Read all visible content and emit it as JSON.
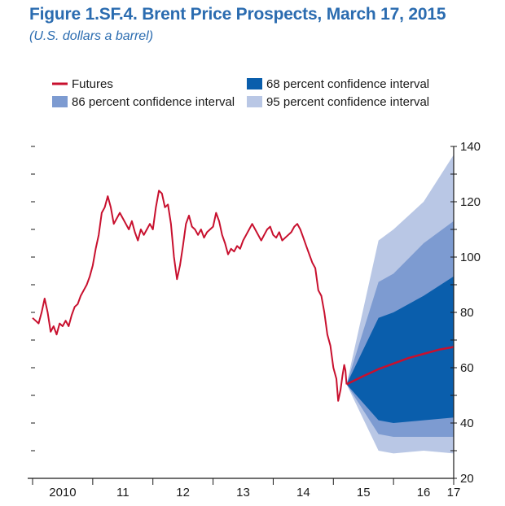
{
  "figure": {
    "title": "Figure 1.SF.4.  Brent Price Prospects, March 17, 2015",
    "subtitle": "(U.S. dollars a barrel)"
  },
  "legend": {
    "futures": "Futures",
    "ci68": "68 percent confidence interval",
    "ci86": "86 percent confidence interval",
    "ci95": "95 percent confidence interval"
  },
  "colors": {
    "title": "#2b6cb0",
    "futures": "#c8102e",
    "ci68": "#0a5eac",
    "ci86": "#7d9bd1",
    "ci95": "#b9c7e5",
    "axis": "#1a1a1a"
  },
  "chart_data": {
    "type": "line",
    "title": "Figure 1.SF.4.  Brent Price Prospects, March 17, 2015",
    "ylabel": "U.S. dollars a barrel",
    "xlim": [
      2010,
      2017
    ],
    "ylim": [
      20,
      140
    ],
    "yticks": [
      20,
      40,
      60,
      80,
      100,
      120,
      140
    ],
    "xtick_labels": [
      "2010",
      "11",
      "12",
      "13",
      "14",
      "15",
      "16",
      "17"
    ],
    "grid": false,
    "legend_position": "top",
    "series": [
      {
        "name": "Futures",
        "kind": "line",
        "color": "#c8102e",
        "points": [
          [
            2010.0,
            78
          ],
          [
            2010.05,
            77
          ],
          [
            2010.1,
            76
          ],
          [
            2010.15,
            80
          ],
          [
            2010.2,
            85
          ],
          [
            2010.25,
            80
          ],
          [
            2010.3,
            73
          ],
          [
            2010.35,
            75
          ],
          [
            2010.4,
            72
          ],
          [
            2010.45,
            76
          ],
          [
            2010.5,
            75
          ],
          [
            2010.55,
            77
          ],
          [
            2010.6,
            75
          ],
          [
            2010.65,
            79
          ],
          [
            2010.7,
            82
          ],
          [
            2010.75,
            83
          ],
          [
            2010.8,
            86
          ],
          [
            2010.85,
            88
          ],
          [
            2010.9,
            90
          ],
          [
            2010.95,
            93
          ],
          [
            2011.0,
            97
          ],
          [
            2011.05,
            103
          ],
          [
            2011.1,
            108
          ],
          [
            2011.15,
            116
          ],
          [
            2011.2,
            118
          ],
          [
            2011.25,
            122
          ],
          [
            2011.3,
            118
          ],
          [
            2011.35,
            112
          ],
          [
            2011.4,
            114
          ],
          [
            2011.45,
            116
          ],
          [
            2011.5,
            114
          ],
          [
            2011.55,
            112
          ],
          [
            2011.6,
            110
          ],
          [
            2011.65,
            113
          ],
          [
            2011.7,
            109
          ],
          [
            2011.75,
            106
          ],
          [
            2011.8,
            110
          ],
          [
            2011.85,
            108
          ],
          [
            2011.9,
            110
          ],
          [
            2011.95,
            112
          ],
          [
            2012.0,
            110
          ],
          [
            2012.05,
            118
          ],
          [
            2012.1,
            124
          ],
          [
            2012.15,
            123
          ],
          [
            2012.2,
            118
          ],
          [
            2012.25,
            119
          ],
          [
            2012.3,
            112
          ],
          [
            2012.35,
            100
          ],
          [
            2012.4,
            92
          ],
          [
            2012.45,
            97
          ],
          [
            2012.5,
            104
          ],
          [
            2012.55,
            112
          ],
          [
            2012.6,
            115
          ],
          [
            2012.65,
            111
          ],
          [
            2012.7,
            110
          ],
          [
            2012.75,
            108
          ],
          [
            2012.8,
            110
          ],
          [
            2012.85,
            107
          ],
          [
            2012.9,
            109
          ],
          [
            2012.95,
            110
          ],
          [
            2013.0,
            111
          ],
          [
            2013.05,
            116
          ],
          [
            2013.1,
            113
          ],
          [
            2013.15,
            108
          ],
          [
            2013.2,
            105
          ],
          [
            2013.25,
            101
          ],
          [
            2013.3,
            103
          ],
          [
            2013.35,
            102
          ],
          [
            2013.4,
            104
          ],
          [
            2013.45,
            103
          ],
          [
            2013.5,
            106
          ],
          [
            2013.55,
            108
          ],
          [
            2013.6,
            110
          ],
          [
            2013.65,
            112
          ],
          [
            2013.7,
            110
          ],
          [
            2013.75,
            108
          ],
          [
            2013.8,
            106
          ],
          [
            2013.85,
            108
          ],
          [
            2013.9,
            110
          ],
          [
            2013.95,
            111
          ],
          [
            2014.0,
            108
          ],
          [
            2014.05,
            107
          ],
          [
            2014.1,
            109
          ],
          [
            2014.15,
            106
          ],
          [
            2014.2,
            107
          ],
          [
            2014.25,
            108
          ],
          [
            2014.3,
            109
          ],
          [
            2014.35,
            111
          ],
          [
            2014.4,
            112
          ],
          [
            2014.45,
            110
          ],
          [
            2014.5,
            107
          ],
          [
            2014.55,
            104
          ],
          [
            2014.6,
            101
          ],
          [
            2014.65,
            98
          ],
          [
            2014.7,
            96
          ],
          [
            2014.75,
            88
          ],
          [
            2014.8,
            86
          ],
          [
            2014.85,
            80
          ],
          [
            2014.9,
            72
          ],
          [
            2014.95,
            68
          ],
          [
            2015.0,
            60
          ],
          [
            2015.05,
            56
          ],
          [
            2015.08,
            48
          ],
          [
            2015.12,
            52
          ],
          [
            2015.15,
            57
          ],
          [
            2015.18,
            61
          ],
          [
            2015.2,
            59
          ],
          [
            2015.22,
            54
          ]
        ]
      },
      {
        "name": "Futures",
        "kind": "projection",
        "color": "#c8102e",
        "points": [
          [
            2015.22,
            54
          ],
          [
            2015.5,
            57
          ],
          [
            2015.75,
            59.5
          ],
          [
            2016.0,
            61.5
          ],
          [
            2016.25,
            63.5
          ],
          [
            2016.5,
            65
          ],
          [
            2016.75,
            66.5
          ],
          [
            2017.0,
            67.5
          ]
        ]
      }
    ],
    "bands": [
      {
        "name": "95 percent confidence interval",
        "color": "#b9c7e5",
        "x": [
          2015.22,
          2015.75,
          2016.0,
          2016.5,
          2017.0
        ],
        "upper": [
          54,
          106,
          110,
          120,
          137
        ],
        "lower": [
          54,
          30,
          29,
          30,
          29
        ]
      },
      {
        "name": "86 percent confidence interval",
        "color": "#7d9bd1",
        "x": [
          2015.22,
          2015.75,
          2016.0,
          2016.5,
          2017.0
        ],
        "upper": [
          54,
          91,
          94,
          105,
          113
        ],
        "lower": [
          54,
          36,
          35,
          35,
          35
        ]
      },
      {
        "name": "68 percent confidence interval",
        "color": "#0a5eac",
        "x": [
          2015.22,
          2015.75,
          2016.0,
          2016.5,
          2017.0
        ],
        "upper": [
          54,
          78,
          80,
          86,
          93
        ],
        "lower": [
          54,
          41,
          40,
          41,
          42
        ]
      }
    ]
  }
}
